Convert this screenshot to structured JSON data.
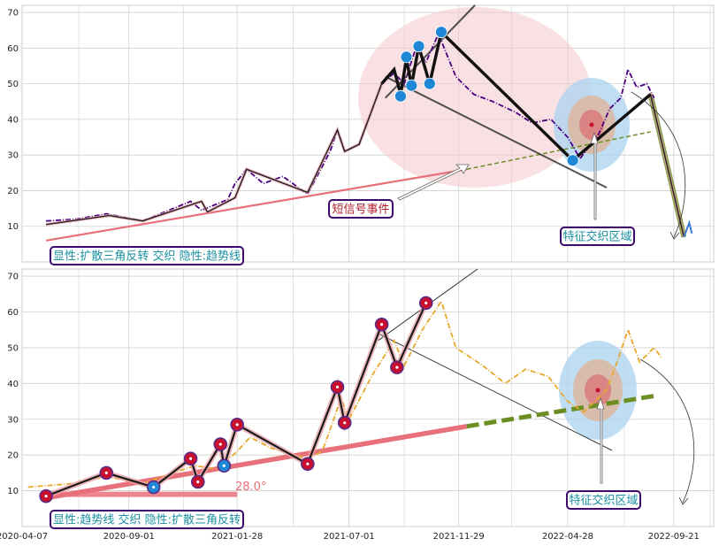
{
  "chart_data": [
    {
      "type": "line",
      "panel": "top",
      "ylim": [
        0,
        72
      ],
      "yticks": [
        10,
        20,
        30,
        40,
        50,
        60,
        70
      ],
      "x_range": [
        "2020-04-07",
        "2022-11-15"
      ],
      "grid": true,
      "series": [
        {
          "color": "#4b0082",
          "style": "dash-dot",
          "points": [
            [
              "2020-05-10",
              11.5
            ],
            [
              "2020-06-20",
              12
            ],
            [
              "2020-08-01",
              13.5
            ],
            [
              "2020-09-20",
              11.5
            ],
            [
              "2020-10-20",
              14
            ],
            [
              "2020-11-25",
              17
            ],
            [
              "2020-12-10",
              14.5
            ],
            [
              "2021-01-15",
              17.5
            ],
            [
              "2021-01-25",
              22
            ],
            [
              "2021-02-10",
              26
            ],
            [
              "2021-03-05",
              22
            ],
            [
              "2021-04-01",
              24
            ],
            [
              "2021-05-05",
              19
            ],
            [
              "2021-06-05",
              31
            ],
            [
              "2021-06-15",
              37
            ],
            [
              "2021-06-25",
              31
            ],
            [
              "2021-07-15",
              33
            ],
            [
              "2021-08-15",
              50
            ],
            [
              "2021-09-01",
              53
            ],
            [
              "2021-09-15",
              50
            ],
            [
              "2021-10-01",
              60
            ],
            [
              "2021-10-15",
              56
            ],
            [
              "2021-11-01",
              64
            ],
            [
              "2021-11-15",
              57
            ],
            [
              "2021-11-25",
              52
            ],
            [
              "2021-12-20",
              47
            ],
            [
              "2022-01-15",
              45
            ],
            [
              "2022-02-15",
              42
            ],
            [
              "2022-03-10",
              39
            ],
            [
              "2022-04-05",
              40
            ],
            [
              "2022-04-28",
              35
            ],
            [
              "2022-05-15",
              29
            ],
            [
              "2022-06-10",
              36
            ],
            [
              "2022-06-25",
              43
            ],
            [
              "2022-07-10",
              46
            ],
            [
              "2022-07-20",
              54
            ],
            [
              "2022-08-01",
              49
            ],
            [
              "2022-08-15",
              50
            ],
            [
              "2022-08-25",
              46
            ]
          ]
        }
      ],
      "zigzag": [
        [
          "2020-05-10",
          10.5
        ],
        [
          "2020-08-05",
          13
        ],
        [
          "2020-09-20",
          11.5
        ],
        [
          "2020-12-10",
          17
        ],
        [
          "2020-12-18",
          14
        ],
        [
          "2021-01-25",
          18
        ],
        [
          "2021-02-10",
          26
        ],
        [
          "2021-05-05",
          19.5
        ],
        [
          "2021-06-15",
          37
        ],
        [
          "2021-06-25",
          31
        ],
        [
          "2021-07-15",
          33
        ],
        [
          "2021-08-15",
          50
        ],
        [
          "2021-09-01",
          54
        ],
        [
          "2021-09-10",
          47
        ],
        [
          "2021-09-18",
          57
        ],
        [
          "2021-09-25",
          49.5
        ],
        [
          "2021-10-05",
          60.5
        ],
        [
          "2021-10-20",
          50
        ],
        [
          "2021-11-05",
          64.5
        ],
        [
          "2022-05-05",
          28.5
        ],
        [
          "2022-08-20",
          47
        ],
        [
          "2022-10-05",
          7
        ]
      ],
      "markers": [
        [
          "2021-09-10",
          46.5
        ],
        [
          "2021-09-18",
          57.5
        ],
        [
          "2021-09-25",
          49.5
        ],
        [
          "2021-10-05",
          60.5
        ],
        [
          "2021-10-20",
          50
        ],
        [
          "2021-11-05",
          64.5
        ],
        [
          "2022-05-05",
          28.5
        ]
      ],
      "labels": {
        "box1": "短信号事件",
        "box2": "特征交织区域",
        "box3": "显性:扩散三角反转 交织 隐性:趋势线"
      }
    },
    {
      "type": "line",
      "panel": "bottom",
      "ylim": [
        0,
        72
      ],
      "yticks": [
        10,
        20,
        30,
        40,
        50,
        60,
        70
      ],
      "x_range": [
        "2020-04-07",
        "2022-11-15"
      ],
      "xticks": [
        "2020-04-07",
        "2020-09-01",
        "2021-01-28",
        "2021-07-01",
        "2021-11-29",
        "2022-04-28",
        "2022-09-21"
      ],
      "grid": true,
      "series": [
        {
          "color": "#e8a82a",
          "style": "dash-dot",
          "points": [
            [
              "2020-04-15",
              11
            ],
            [
              "2020-06-15",
              12
            ],
            [
              "2020-08-01",
              14
            ],
            [
              "2020-09-20",
              12
            ],
            [
              "2020-11-01",
              15
            ],
            [
              "2020-12-01",
              17
            ],
            [
              "2021-01-01",
              16
            ],
            [
              "2021-01-28",
              21
            ],
            [
              "2021-02-15",
              25
            ],
            [
              "2021-03-15",
              22
            ],
            [
              "2021-05-05",
              19
            ],
            [
              "2021-05-25",
              21
            ],
            [
              "2021-06-10",
              30
            ],
            [
              "2021-06-20",
              36
            ],
            [
              "2021-07-01",
              30
            ],
            [
              "2021-08-01",
              42
            ],
            [
              "2021-09-01",
              52
            ],
            [
              "2021-09-15",
              45
            ],
            [
              "2021-10-10",
              55
            ],
            [
              "2021-11-05",
              63
            ],
            [
              "2021-11-25",
              50
            ],
            [
              "2022-01-01",
              45
            ],
            [
              "2022-02-01",
              40
            ],
            [
              "2022-03-01",
              44
            ],
            [
              "2022-04-01",
              42
            ],
            [
              "2022-04-28",
              35
            ],
            [
              "2022-05-20",
              32
            ],
            [
              "2022-06-20",
              38
            ],
            [
              "2022-07-05",
              46
            ],
            [
              "2022-07-20",
              55
            ],
            [
              "2022-08-05",
              46
            ],
            [
              "2022-08-25",
              50
            ],
            [
              "2022-09-05",
              47
            ]
          ]
        }
      ],
      "zigzag": [
        [
          "2020-05-10",
          8.5
        ],
        [
          "2020-08-01",
          15
        ],
        [
          "2020-10-05",
          11
        ],
        [
          "2020-11-25",
          19
        ],
        [
          "2020-12-05",
          12.5
        ],
        [
          "2021-01-05",
          23
        ],
        [
          "2021-01-10",
          17
        ],
        [
          "2021-01-28",
          28.5
        ],
        [
          "2021-05-05",
          17.5
        ],
        [
          "2021-06-15",
          39
        ],
        [
          "2021-06-25",
          29
        ],
        [
          "2021-08-15",
          56.5
        ],
        [
          "2021-09-05",
          44.5
        ],
        [
          "2021-10-15",
          62.5
        ]
      ],
      "markers": [
        [
          "2020-05-10",
          8.5
        ],
        [
          "2020-08-01",
          15
        ],
        [
          "2020-10-05",
          11
        ],
        [
          "2020-11-25",
          19
        ],
        [
          "2020-12-05",
          12.5
        ],
        [
          "2021-01-05",
          23
        ],
        [
          "2021-01-10",
          17
        ],
        [
          "2021-01-28",
          28.5
        ],
        [
          "2021-05-05",
          17.5
        ],
        [
          "2021-06-15",
          39
        ],
        [
          "2021-06-25",
          29
        ],
        [
          "2021-08-15",
          56.5
        ],
        [
          "2021-09-05",
          44.5
        ],
        [
          "2021-10-15",
          62.5
        ]
      ],
      "angle_label": "28.0°",
      "labels": {
        "box2": "特征交织区域",
        "box3": "显性:趋势线 交织 隐性:扩散三角反转"
      }
    }
  ],
  "colors": {
    "purple_line": "#4b0082",
    "orange_line": "#e8a82a",
    "trend_pink": "#e8707a",
    "trend_green": "#6b8e23",
    "marker_blue": "#1e88d6",
    "marker_red": "#c8102e",
    "box_border": "#3c0a6b",
    "box_text": "#1a8fa0",
    "signal_text": "#b0202e"
  }
}
